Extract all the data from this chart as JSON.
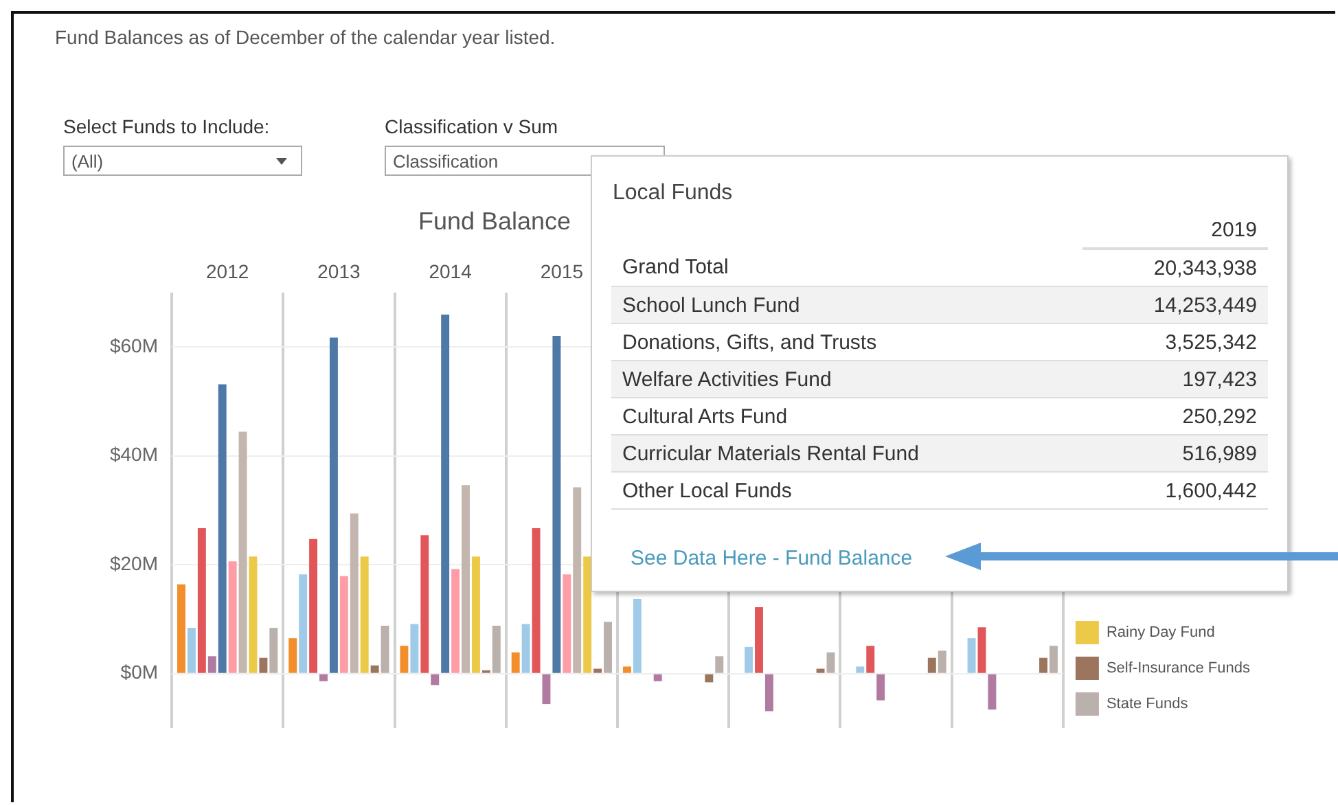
{
  "chart_data": {
    "type": "bar",
    "title": "Fund Balance",
    "subtitle": "Fund Balances as of December of the calendar year listed.",
    "categories": [
      "2012",
      "2013",
      "2014",
      "2015",
      null,
      null,
      null,
      null
    ],
    "series": [
      {
        "color": "#f28e2b",
        "values": [
          16.4,
          6.5,
          5.1,
          3.9,
          1.3,
          null,
          null,
          null
        ]
      },
      {
        "color": "#a0cbe8",
        "values": [
          8.4,
          18.2,
          9.1,
          9.1,
          13.7,
          4.9,
          1.3,
          6.5
        ]
      },
      {
        "color": "#e15759",
        "values": [
          26.7,
          24.7,
          25.4,
          26.7,
          null,
          12.2,
          5.1,
          8.5
        ]
      },
      {
        "color": "#b07aa1",
        "values": [
          3.2,
          -1.4,
          -2.1,
          -5.6,
          -1.4,
          -6.9,
          -4.9,
          -6.6
        ]
      },
      {
        "color": "#4e79a7",
        "values": [
          53.1,
          61.7,
          65.9,
          62.0,
          null,
          null,
          null,
          null
        ]
      },
      {
        "color": "#ff9da7",
        "values": [
          20.6,
          17.9,
          19.2,
          18.2,
          null,
          null,
          null,
          null
        ]
      },
      {
        "color": "#c2b6ae",
        "values": [
          44.4,
          29.4,
          34.6,
          34.2,
          null,
          null,
          null,
          null
        ]
      },
      {
        "name": "Rainy Day Fund",
        "color": "#edc948",
        "values": [
          21.5,
          21.5,
          21.5,
          21.5,
          null,
          null,
          null,
          null
        ]
      },
      {
        "name": "Self-Insurance Funds",
        "color": "#9c755f",
        "values": [
          2.9,
          1.5,
          0.6,
          0.9,
          -1.6,
          0.9,
          2.9,
          2.9
        ]
      },
      {
        "name": "State Funds",
        "color": "#bab0ac",
        "values": [
          8.4,
          8.8,
          8.8,
          9.5,
          3.2,
          3.9,
          4.2,
          5.1
        ]
      }
    ],
    "ylim": [
      -10,
      70
    ],
    "yticks": [
      {
        "value": 0,
        "label": "$0M"
      },
      {
        "value": 20,
        "label": "$20M"
      },
      {
        "value": 40,
        "label": "$40M"
      },
      {
        "value": 60,
        "label": "$60M"
      }
    ],
    "grid": true,
    "legend": "bottom right",
    "annotations": [
      "Select Funds to Include:",
      "(All)",
      "Classification v Sum",
      "Classification",
      "Local Funds",
      "2019",
      "Grand Total",
      "20,343,938",
      "School Lunch Fund",
      "14,253,449",
      "Donations, Gifts, and Trusts",
      "3,525,342",
      "Welfare Activities Fund",
      "197,423",
      "Cultural Arts Fund",
      "250,292",
      "Curricular Materials Rental Fund",
      "516,989",
      "Other Local Funds",
      "1,600,442",
      "See Data Here - Fund Balance"
    ]
  }
}
